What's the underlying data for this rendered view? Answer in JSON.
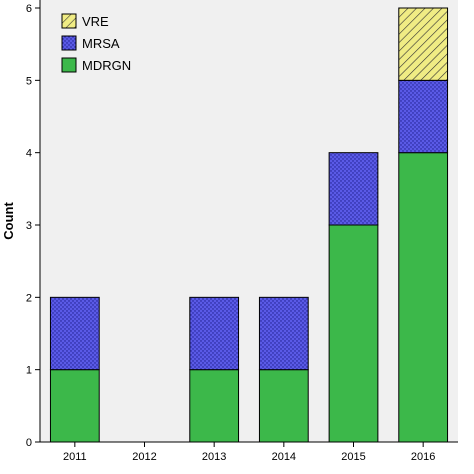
{
  "chart_data": {
    "type": "bar",
    "stacked": true,
    "title": "",
    "xlabel": "",
    "ylabel": "Count",
    "ylim": [
      0,
      6
    ],
    "yticks": [
      0,
      1,
      2,
      3,
      4,
      5,
      6
    ],
    "categories": [
      "2011",
      "2012",
      "2013",
      "2014",
      "2015",
      "2016"
    ],
    "series": [
      {
        "name": "MDRGN",
        "values": [
          1,
          0,
          1,
          1,
          3,
          4
        ],
        "color": "#3cb84a",
        "pattern": "solid"
      },
      {
        "name": "MRSA",
        "values": [
          1,
          0,
          1,
          1,
          1,
          1
        ],
        "color": "#5a5ae6",
        "pattern": "dotted"
      },
      {
        "name": "VRE",
        "values": [
          0,
          0,
          0,
          0,
          0,
          1
        ],
        "color": "#f0ec84",
        "pattern": "hatched"
      }
    ],
    "legend": {
      "placement": "top-left",
      "order": [
        "VRE",
        "MRSA",
        "MDRGN"
      ]
    },
    "grid": false,
    "plot_background": "#f0f0f0"
  }
}
